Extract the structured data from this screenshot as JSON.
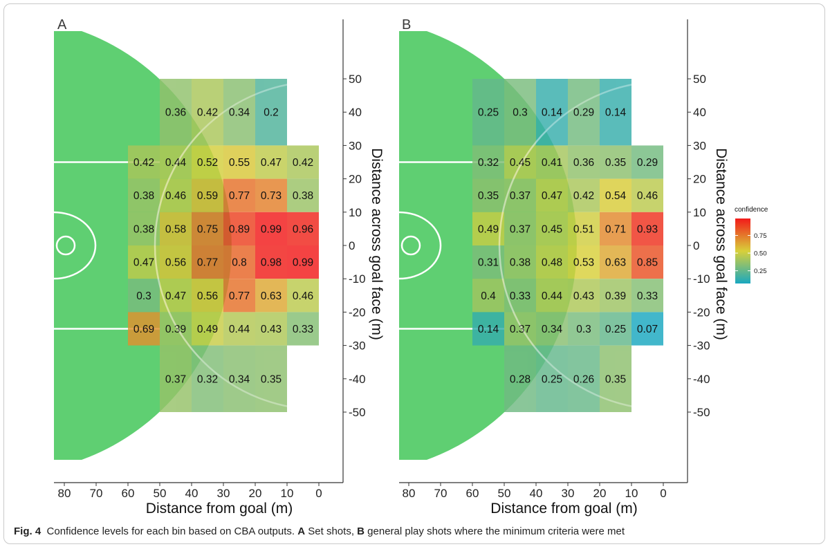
{
  "caption": {
    "fig_label": "Fig. 4",
    "text_1": "Confidence levels for each bin based on CBA outputs.",
    "a_letter": "A",
    "text_2": "Set shots,",
    "b_letter": "B",
    "text_3": "general play shots where the minimum criteria were met"
  },
  "legend": {
    "title": "confidence",
    "ticks": [
      "0.75",
      "0.50",
      "0.25"
    ],
    "tick_values": [
      0.75,
      0.5,
      0.25
    ],
    "range": [
      0.07,
      0.99
    ],
    "colors": [
      "#19a8c0",
      "#d8d03a",
      "#f21a1a"
    ]
  },
  "colors": {
    "field": "#5fcf72",
    "field_lines": "#ffffff"
  },
  "chart_data": [
    {
      "type": "heatmap",
      "panel_label": "A",
      "xlabel": "Distance from goal (m)",
      "ylabel": "Distance across goal face (m)",
      "x_ticks": [
        "80",
        "70",
        "60",
        "50",
        "40",
        "30",
        "20",
        "10",
        "0"
      ],
      "x_tick_values": [
        80,
        70,
        60,
        50,
        40,
        30,
        20,
        10,
        0
      ],
      "y_ticks": [
        "50",
        "40",
        "30",
        "20",
        "10",
        "0",
        "-10",
        "-20",
        "-30",
        "-40",
        "-50"
      ],
      "y_tick_values": [
        50,
        40,
        30,
        20,
        10,
        0,
        -10,
        -20,
        -30,
        -40,
        -50
      ],
      "xlim": [
        83,
        -5
      ],
      "ylim": [
        -70,
        62
      ],
      "cells": [
        {
          "x0": 50,
          "x1": 40,
          "y0": 50,
          "y1": 30,
          "v": 0.36
        },
        {
          "x0": 40,
          "x1": 30,
          "y0": 50,
          "y1": 30,
          "v": 0.42
        },
        {
          "x0": 30,
          "x1": 20,
          "y0": 50,
          "y1": 30,
          "v": 0.34
        },
        {
          "x0": 20,
          "x1": 10,
          "y0": 50,
          "y1": 30,
          "v": 0.2
        },
        {
          "x0": 60,
          "x1": 50,
          "y0": 30,
          "y1": 20,
          "v": 0.42
        },
        {
          "x0": 50,
          "x1": 40,
          "y0": 30,
          "y1": 20,
          "v": 0.44
        },
        {
          "x0": 40,
          "x1": 30,
          "y0": 30,
          "y1": 20,
          "v": 0.52
        },
        {
          "x0": 30,
          "x1": 20,
          "y0": 30,
          "y1": 20,
          "v": 0.55
        },
        {
          "x0": 20,
          "x1": 10,
          "y0": 30,
          "y1": 20,
          "v": 0.47
        },
        {
          "x0": 10,
          "x1": 0,
          "y0": 30,
          "y1": 20,
          "v": 0.42
        },
        {
          "x0": 60,
          "x1": 50,
          "y0": 20,
          "y1": 10,
          "v": 0.38
        },
        {
          "x0": 50,
          "x1": 40,
          "y0": 20,
          "y1": 10,
          "v": 0.46
        },
        {
          "x0": 40,
          "x1": 30,
          "y0": 20,
          "y1": 10,
          "v": 0.59
        },
        {
          "x0": 30,
          "x1": 20,
          "y0": 20,
          "y1": 10,
          "v": 0.77
        },
        {
          "x0": 20,
          "x1": 10,
          "y0": 20,
          "y1": 10,
          "v": 0.73
        },
        {
          "x0": 10,
          "x1": 0,
          "y0": 20,
          "y1": 10,
          "v": 0.38
        },
        {
          "x0": 60,
          "x1": 50,
          "y0": 10,
          "y1": 0,
          "v": 0.38
        },
        {
          "x0": 50,
          "x1": 40,
          "y0": 10,
          "y1": 0,
          "v": 0.58
        },
        {
          "x0": 40,
          "x1": 30,
          "y0": 10,
          "y1": 0,
          "v": 0.75
        },
        {
          "x0": 30,
          "x1": 20,
          "y0": 10,
          "y1": 0,
          "v": 0.89
        },
        {
          "x0": 20,
          "x1": 10,
          "y0": 10,
          "y1": 0,
          "v": 0.99
        },
        {
          "x0": 10,
          "x1": 0,
          "y0": 10,
          "y1": 0,
          "v": 0.96
        },
        {
          "x0": 60,
          "x1": 50,
          "y0": 0,
          "y1": -10,
          "v": 0.47
        },
        {
          "x0": 50,
          "x1": 40,
          "y0": 0,
          "y1": -10,
          "v": 0.56
        },
        {
          "x0": 40,
          "x1": 30,
          "y0": 0,
          "y1": -10,
          "v": 0.77
        },
        {
          "x0": 30,
          "x1": 20,
          "y0": 0,
          "y1": -10,
          "v": 0.8
        },
        {
          "x0": 20,
          "x1": 10,
          "y0": 0,
          "y1": -10,
          "v": 0.98
        },
        {
          "x0": 10,
          "x1": 0,
          "y0": 0,
          "y1": -10,
          "v": 0.99
        },
        {
          "x0": 60,
          "x1": 50,
          "y0": -10,
          "y1": -20,
          "v": 0.3
        },
        {
          "x0": 50,
          "x1": 40,
          "y0": -10,
          "y1": -20,
          "v": 0.47
        },
        {
          "x0": 40,
          "x1": 30,
          "y0": -10,
          "y1": -20,
          "v": 0.56
        },
        {
          "x0": 30,
          "x1": 20,
          "y0": -10,
          "y1": -20,
          "v": 0.77
        },
        {
          "x0": 20,
          "x1": 10,
          "y0": -10,
          "y1": -20,
          "v": 0.63
        },
        {
          "x0": 10,
          "x1": 0,
          "y0": -10,
          "y1": -20,
          "v": 0.46
        },
        {
          "x0": 60,
          "x1": 50,
          "y0": -20,
          "y1": -30,
          "v": 0.69
        },
        {
          "x0": 50,
          "x1": 40,
          "y0": -20,
          "y1": -30,
          "v": 0.39
        },
        {
          "x0": 40,
          "x1": 30,
          "y0": -20,
          "y1": -30,
          "v": 0.49
        },
        {
          "x0": 30,
          "x1": 20,
          "y0": -20,
          "y1": -30,
          "v": 0.44
        },
        {
          "x0": 20,
          "x1": 10,
          "y0": -20,
          "y1": -30,
          "v": 0.43
        },
        {
          "x0": 10,
          "x1": 0,
          "y0": -20,
          "y1": -30,
          "v": 0.33
        },
        {
          "x0": 50,
          "x1": 40,
          "y0": -30,
          "y1": -50,
          "v": 0.37
        },
        {
          "x0": 40,
          "x1": 30,
          "y0": -30,
          "y1": -50,
          "v": 0.32
        },
        {
          "x0": 30,
          "x1": 20,
          "y0": -30,
          "y1": -50,
          "v": 0.34
        },
        {
          "x0": 20,
          "x1": 10,
          "y0": -30,
          "y1": -50,
          "v": 0.35
        }
      ]
    },
    {
      "type": "heatmap",
      "panel_label": "B",
      "xlabel": "Distance from goal (m)",
      "ylabel": "Distance across goal face (m)",
      "x_ticks": [
        "80",
        "70",
        "60",
        "50",
        "40",
        "30",
        "20",
        "10",
        "0"
      ],
      "x_tick_values": [
        80,
        70,
        60,
        50,
        40,
        30,
        20,
        10,
        0
      ],
      "y_ticks": [
        "50",
        "40",
        "30",
        "20",
        "10",
        "0",
        "-10",
        "-20",
        "-30",
        "-40",
        "-50"
      ],
      "y_tick_values": [
        50,
        40,
        30,
        20,
        10,
        0,
        -10,
        -20,
        -30,
        -40,
        -50
      ],
      "xlim": [
        83,
        -5
      ],
      "ylim": [
        -70,
        62
      ],
      "cells": [
        {
          "x0": 60,
          "x1": 50,
          "y0": 50,
          "y1": 30,
          "v": 0.25
        },
        {
          "x0": 50,
          "x1": 40,
          "y0": 50,
          "y1": 30,
          "v": 0.3
        },
        {
          "x0": 40,
          "x1": 30,
          "y0": 50,
          "y1": 30,
          "v": 0.14
        },
        {
          "x0": 30,
          "x1": 20,
          "y0": 50,
          "y1": 30,
          "v": 0.29
        },
        {
          "x0": 20,
          "x1": 10,
          "y0": 50,
          "y1": 30,
          "v": 0.14
        },
        {
          "x0": 60,
          "x1": 50,
          "y0": 30,
          "y1": 20,
          "v": 0.32
        },
        {
          "x0": 50,
          "x1": 40,
          "y0": 30,
          "y1": 20,
          "v": 0.45
        },
        {
          "x0": 40,
          "x1": 30,
          "y0": 30,
          "y1": 20,
          "v": 0.41
        },
        {
          "x0": 30,
          "x1": 20,
          "y0": 30,
          "y1": 20,
          "v": 0.36
        },
        {
          "x0": 20,
          "x1": 10,
          "y0": 30,
          "y1": 20,
          "v": 0.35
        },
        {
          "x0": 10,
          "x1": 0,
          "y0": 30,
          "y1": 20,
          "v": 0.29
        },
        {
          "x0": 60,
          "x1": 50,
          "y0": 20,
          "y1": 10,
          "v": 0.35
        },
        {
          "x0": 50,
          "x1": 40,
          "y0": 20,
          "y1": 10,
          "v": 0.37
        },
        {
          "x0": 40,
          "x1": 30,
          "y0": 20,
          "y1": 10,
          "v": 0.47
        },
        {
          "x0": 30,
          "x1": 20,
          "y0": 20,
          "y1": 10,
          "v": 0.42
        },
        {
          "x0": 20,
          "x1": 10,
          "y0": 20,
          "y1": 10,
          "v": 0.54
        },
        {
          "x0": 10,
          "x1": 0,
          "y0": 20,
          "y1": 10,
          "v": 0.46
        },
        {
          "x0": 60,
          "x1": 50,
          "y0": 10,
          "y1": 0,
          "v": 0.49
        },
        {
          "x0": 50,
          "x1": 40,
          "y0": 10,
          "y1": 0,
          "v": 0.37
        },
        {
          "x0": 40,
          "x1": 30,
          "y0": 10,
          "y1": 0,
          "v": 0.45
        },
        {
          "x0": 30,
          "x1": 20,
          "y0": 10,
          "y1": 0,
          "v": 0.51
        },
        {
          "x0": 20,
          "x1": 10,
          "y0": 10,
          "y1": 0,
          "v": 0.71
        },
        {
          "x0": 10,
          "x1": 0,
          "y0": 10,
          "y1": 0,
          "v": 0.93
        },
        {
          "x0": 60,
          "x1": 50,
          "y0": 0,
          "y1": -10,
          "v": 0.31
        },
        {
          "x0": 50,
          "x1": 40,
          "y0": 0,
          "y1": -10,
          "v": 0.38
        },
        {
          "x0": 40,
          "x1": 30,
          "y0": 0,
          "y1": -10,
          "v": 0.48
        },
        {
          "x0": 30,
          "x1": 20,
          "y0": 0,
          "y1": -10,
          "v": 0.53
        },
        {
          "x0": 20,
          "x1": 10,
          "y0": 0,
          "y1": -10,
          "v": 0.63
        },
        {
          "x0": 10,
          "x1": 0,
          "y0": 0,
          "y1": -10,
          "v": 0.85
        },
        {
          "x0": 60,
          "x1": 50,
          "y0": -10,
          "y1": -20,
          "v": 0.4
        },
        {
          "x0": 50,
          "x1": 40,
          "y0": -10,
          "y1": -20,
          "v": 0.33
        },
        {
          "x0": 40,
          "x1": 30,
          "y0": -10,
          "y1": -20,
          "v": 0.44
        },
        {
          "x0": 30,
          "x1": 20,
          "y0": -10,
          "y1": -20,
          "v": 0.43
        },
        {
          "x0": 20,
          "x1": 10,
          "y0": -10,
          "y1": -20,
          "v": 0.39
        },
        {
          "x0": 10,
          "x1": 0,
          "y0": -10,
          "y1": -20,
          "v": 0.33
        },
        {
          "x0": 60,
          "x1": 50,
          "y0": -20,
          "y1": -30,
          "v": 0.14
        },
        {
          "x0": 50,
          "x1": 40,
          "y0": -20,
          "y1": -30,
          "v": 0.37
        },
        {
          "x0": 40,
          "x1": 30,
          "y0": -20,
          "y1": -30,
          "v": 0.34
        },
        {
          "x0": 30,
          "x1": 20,
          "y0": -20,
          "y1": -30,
          "v": 0.3
        },
        {
          "x0": 20,
          "x1": 10,
          "y0": -20,
          "y1": -30,
          "v": 0.25
        },
        {
          "x0": 10,
          "x1": 0,
          "y0": -20,
          "y1": -30,
          "v": 0.07
        },
        {
          "x0": 50,
          "x1": 40,
          "y0": -30,
          "y1": -50,
          "v": 0.28
        },
        {
          "x0": 40,
          "x1": 30,
          "y0": -30,
          "y1": -50,
          "v": 0.25
        },
        {
          "x0": 30,
          "x1": 20,
          "y0": -30,
          "y1": -50,
          "v": 0.26
        },
        {
          "x0": 20,
          "x1": 10,
          "y0": -30,
          "y1": -50,
          "v": 0.35
        }
      ]
    }
  ]
}
